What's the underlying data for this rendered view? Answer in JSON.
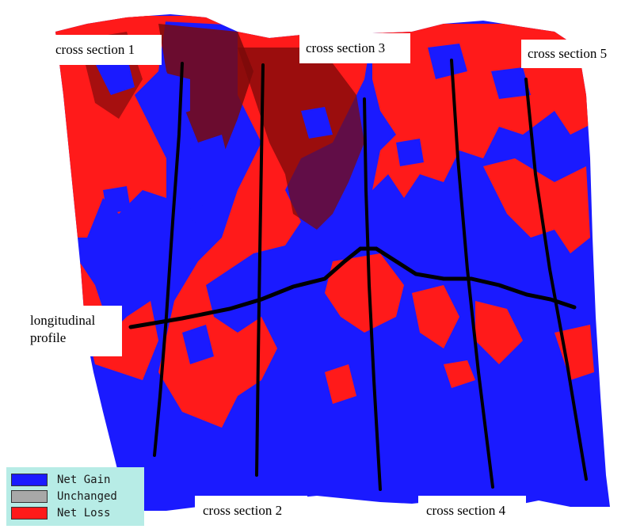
{
  "labels": {
    "cs1": "cross section 1",
    "cs2": "cross section 2",
    "cs3": "cross section 3",
    "cs4": "cross section 4",
    "cs5": "cross section 5",
    "longitudinal_line1": "longitudinal",
    "longitudinal_line2": "profile"
  },
  "legend": [
    {
      "label": "Net Gain",
      "color": "#1a1aff"
    },
    {
      "label": "Unchanged",
      "color": "#a8a8a8"
    },
    {
      "label": "Net Loss",
      "color": "#ff1a1a"
    }
  ],
  "colors": {
    "gain": "#1a1aff",
    "loss": "#ff1a1a",
    "dark_loss": "#7a0a0a",
    "profile_line": "#000000"
  }
}
